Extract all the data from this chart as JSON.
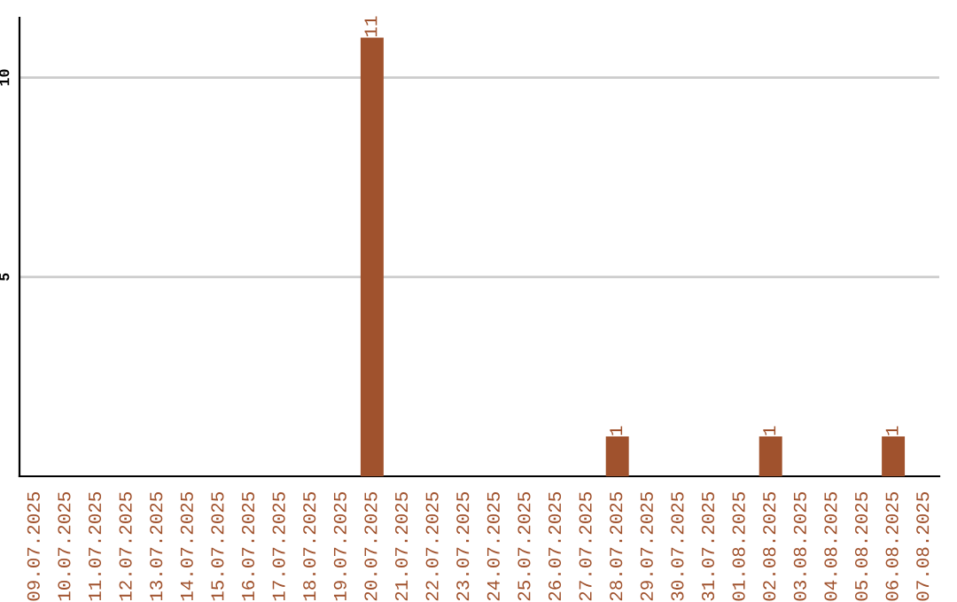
{
  "chart_data": {
    "type": "bar",
    "categories": [
      "09.07.2025",
      "10.07.2025",
      "11.07.2025",
      "12.07.2025",
      "13.07.2025",
      "14.07.2025",
      "15.07.2025",
      "16.07.2025",
      "17.07.2025",
      "18.07.2025",
      "19.07.2025",
      "20.07.2025",
      "21.07.2025",
      "22.07.2025",
      "23.07.2025",
      "24.07.2025",
      "25.07.2025",
      "26.07.2025",
      "27.07.2025",
      "28.07.2025",
      "29.07.2025",
      "30.07.2025",
      "31.07.2025",
      "01.08.2025",
      "02.08.2025",
      "03.08.2025",
      "04.08.2025",
      "05.08.2025",
      "06.08.2025",
      "07.08.2025"
    ],
    "values": [
      0,
      0,
      0,
      0,
      0,
      0,
      0,
      0,
      0,
      0,
      0,
      11,
      0,
      0,
      0,
      0,
      0,
      0,
      0,
      1,
      0,
      0,
      0,
      0,
      1,
      0,
      0,
      0,
      1,
      0
    ],
    "value_labels": [
      null,
      null,
      null,
      null,
      null,
      null,
      null,
      null,
      null,
      null,
      null,
      "11",
      null,
      null,
      null,
      null,
      null,
      null,
      null,
      "1",
      null,
      null,
      null,
      null,
      "1",
      null,
      null,
      null,
      "1",
      null
    ],
    "color": "#a0522d",
    "ylim": [
      0,
      11.5
    ],
    "yticks": [
      5,
      10
    ],
    "grid": "y"
  }
}
